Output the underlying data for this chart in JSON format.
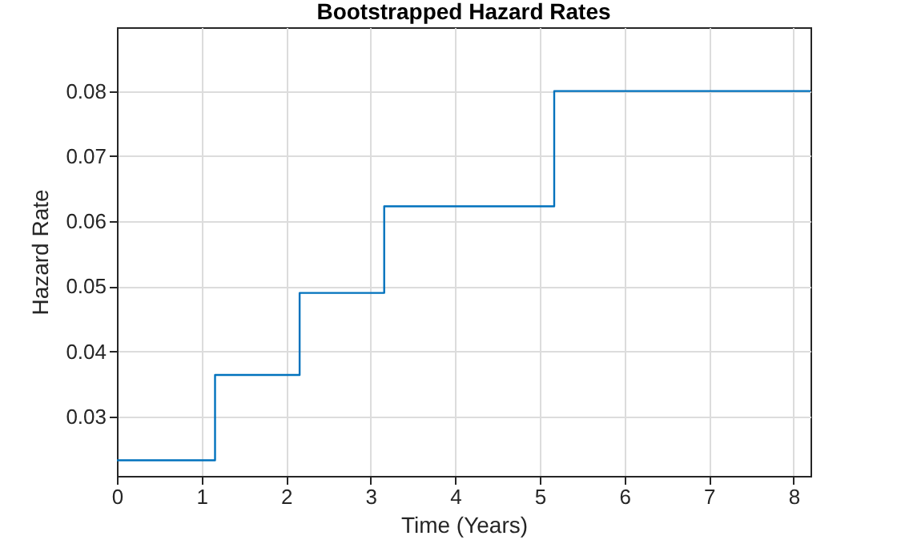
{
  "chart_data": {
    "type": "step",
    "title": "Bootstrapped Hazard Rates",
    "xlabel": "Time (Years)",
    "ylabel": "Hazard Rate",
    "x": [
      0,
      1.16,
      2.16,
      3.16,
      5.17,
      8.2
    ],
    "series": [
      {
        "color": "#0072bd",
        "values": [
          0.0233,
          0.0364,
          0.049,
          0.0623,
          0.08,
          0.08
        ]
      }
    ],
    "xlim": [
      0,
      8.2
    ],
    "xticks": [
      0,
      1,
      2,
      3,
      4,
      5,
      6,
      7,
      8
    ],
    "ylim": [
      0.0209,
      0.0898
    ],
    "yticks": [
      0.03,
      0.04,
      0.05,
      0.06,
      0.07,
      0.08
    ],
    "grid": true
  }
}
